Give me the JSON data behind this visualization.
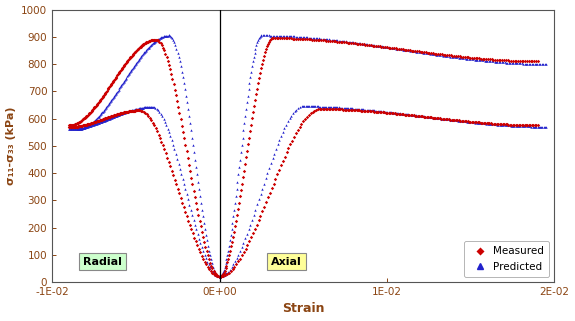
{
  "title": "",
  "xlabel": "Strain",
  "ylabel": "σ₁₁-σ₃₃ (kPa)",
  "xlim": [
    -0.01,
    0.02
  ],
  "ylim": [
    0,
    1000
  ],
  "xticks": [
    -0.01,
    0.0,
    0.01,
    0.02
  ],
  "xtick_labels": [
    "-1E-02",
    "0E+00",
    "1E-02",
    "2E-02"
  ],
  "yticks": [
    0,
    100,
    200,
    300,
    400,
    500,
    600,
    700,
    800,
    900,
    1000
  ],
  "bg_color": "#ffffff",
  "plot_bg_color": "#ffffff",
  "measured_color": "#cc0000",
  "predicted_color": "#2222cc",
  "radial_box_color": "#ccffcc",
  "axial_box_color": "#ffff99",
  "label_text_color": "#8B4513",
  "axis_text_color": "#8B4513"
}
